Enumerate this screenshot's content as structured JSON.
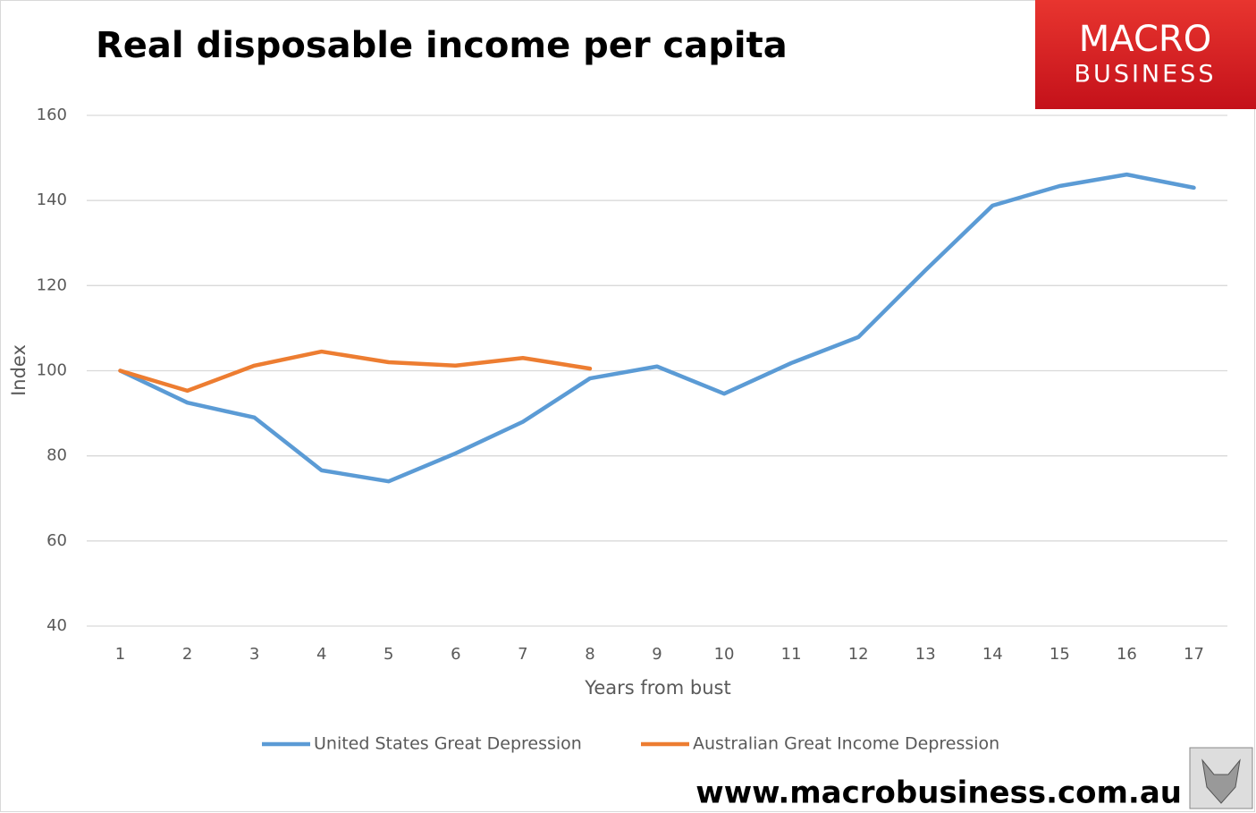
{
  "chart_data": {
    "type": "line",
    "title": "Real disposable income per capita",
    "x_label": "Years from bust",
    "y_label": "Index",
    "categories": [
      "1",
      "2",
      "3",
      "4",
      "5",
      "6",
      "7",
      "8",
      "9",
      "10",
      "11",
      "12",
      "13",
      "14",
      "15",
      "16",
      "17"
    ],
    "series": [
      {
        "name": "United States Great Depression",
        "color": "#5b9bd5",
        "values": [
          100,
          92.5,
          89,
          76.6,
          74,
          80.6,
          88,
          98.2,
          101,
          94.6,
          101.8,
          107.9,
          123.6,
          138.8,
          143.4,
          146.1,
          143
        ]
      },
      {
        "name": "Australian Great Income Depression",
        "color": "#ed7d31",
        "values": [
          100,
          95.3,
          101.2,
          104.5,
          102,
          101.2,
          103,
          100.5,
          null,
          null,
          null,
          null,
          null,
          null,
          null,
          null,
          null
        ]
      }
    ],
    "ylim": [
      40,
      160
    ],
    "yticks": [
      40,
      60,
      80,
      100,
      120,
      140,
      160
    ],
    "grid": true,
    "legend": "bottom"
  },
  "logo": {
    "line1": "MACRO",
    "line2": "BUSINESS"
  },
  "footer_url": "www.macrobusiness.com.au"
}
